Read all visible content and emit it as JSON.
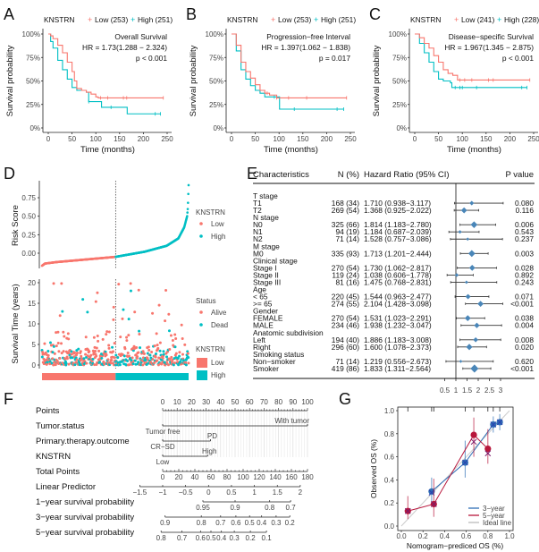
{
  "panel_labels": [
    "A",
    "B",
    "C",
    "D",
    "E",
    "F",
    "G"
  ],
  "chart_data": {
    "km": [
      {
        "type": "line",
        "legend_title": "KNSTRN",
        "low_label": "Low (253)",
        "high_label": "High (251)",
        "title": "Overall Survival",
        "hr": "HR = 1.73(1.288 − 2.324)",
        "p": "p < 0.001",
        "ylabel": "Survival probability",
        "xlabel": "Time (months)",
        "yticks": [
          "0%",
          "25%",
          "50%",
          "75%",
          "100%"
        ],
        "xticks": [
          "0",
          "50",
          "100",
          "150",
          "200",
          "250"
        ],
        "xlim": [
          0,
          250
        ],
        "ylim": [
          0,
          1
        ],
        "low": [
          [
            0,
            1
          ],
          [
            5,
            0.98
          ],
          [
            10,
            0.95
          ],
          [
            20,
            0.88
          ],
          [
            30,
            0.8
          ],
          [
            40,
            0.7
          ],
          [
            50,
            0.6
          ],
          [
            55,
            0.5
          ],
          [
            60,
            0.42
          ],
          [
            70,
            0.4
          ],
          [
            80,
            0.38
          ],
          [
            90,
            0.36
          ],
          [
            100,
            0.33
          ],
          [
            105,
            0.32
          ],
          [
            242,
            0.32
          ]
        ],
        "high": [
          [
            0,
            1
          ],
          [
            5,
            0.92
          ],
          [
            10,
            0.85
          ],
          [
            20,
            0.72
          ],
          [
            30,
            0.62
          ],
          [
            40,
            0.52
          ],
          [
            50,
            0.43
          ],
          [
            60,
            0.4
          ],
          [
            80,
            0.38
          ],
          [
            85,
            0.28
          ],
          [
            110,
            0.28
          ],
          [
            112,
            0.22
          ],
          [
            165,
            0.22
          ],
          [
            166,
            0.15
          ],
          [
            236,
            0.15
          ]
        ],
        "censor_low": [
          110,
          125,
          158,
          165,
          242
        ],
        "censor_high": [
          85,
          132,
          225,
          236
        ]
      },
      {
        "type": "line",
        "legend_title": "KNSTRN",
        "low_label": "Low (253)",
        "high_label": "High (251)",
        "title": "Progression−free Interval",
        "hr": "HR = 1.397(1.062 − 1.838)",
        "p": "p = 0.017",
        "ylabel": "Survival probability",
        "xlabel": "Time (months)",
        "yticks": [
          "0%",
          "25%",
          "50%",
          "75%",
          "100%"
        ],
        "xticks": [
          "0",
          "50",
          "100",
          "150",
          "200",
          "250"
        ],
        "xlim": [
          0,
          250
        ],
        "ylim": [
          0,
          1
        ],
        "low": [
          [
            0,
            1
          ],
          [
            10,
            0.88
          ],
          [
            20,
            0.7
          ],
          [
            30,
            0.6
          ],
          [
            40,
            0.53
          ],
          [
            50,
            0.46
          ],
          [
            60,
            0.4
          ],
          [
            70,
            0.37
          ],
          [
            80,
            0.35
          ],
          [
            95,
            0.32
          ],
          [
            242,
            0.32
          ]
        ],
        "high": [
          [
            0,
            1
          ],
          [
            10,
            0.82
          ],
          [
            20,
            0.62
          ],
          [
            30,
            0.52
          ],
          [
            40,
            0.45
          ],
          [
            50,
            0.4
          ],
          [
            60,
            0.37
          ],
          [
            70,
            0.33
          ],
          [
            100,
            0.33
          ],
          [
            101,
            0.2
          ],
          [
            236,
            0.2
          ]
        ],
        "censor_low": [
          75,
          95,
          120,
          158,
          242
        ],
        "censor_high": [
          90,
          132,
          222,
          236
        ]
      },
      {
        "type": "line",
        "legend_title": "KNSTRN",
        "low_label": "Low (241)",
        "high_label": "High (228)",
        "title": "Disease−specific Survival",
        "hr": "HR = 1.967(1.345 − 2.875)",
        "p": "p < 0.001",
        "ylabel": "Survival probability",
        "xlabel": "Time (months)",
        "yticks": [
          "0%",
          "25%",
          "50%",
          "75%",
          "100%"
        ],
        "xticks": [
          "0",
          "50",
          "100",
          "150",
          "200",
          "250"
        ],
        "xlim": [
          0,
          250
        ],
        "ylim": [
          0,
          1
        ],
        "low": [
          [
            0,
            1
          ],
          [
            10,
            0.96
          ],
          [
            20,
            0.9
          ],
          [
            30,
            0.85
          ],
          [
            40,
            0.77
          ],
          [
            50,
            0.7
          ],
          [
            60,
            0.62
          ],
          [
            70,
            0.58
          ],
          [
            80,
            0.56
          ],
          [
            90,
            0.51
          ],
          [
            242,
            0.51
          ]
        ],
        "high": [
          [
            0,
            1
          ],
          [
            10,
            0.9
          ],
          [
            20,
            0.8
          ],
          [
            30,
            0.7
          ],
          [
            40,
            0.6
          ],
          [
            50,
            0.52
          ],
          [
            60,
            0.5
          ],
          [
            75,
            0.48
          ],
          [
            78,
            0.43
          ],
          [
            236,
            0.43
          ]
        ],
        "censor_low": [
          95,
          105,
          120,
          155,
          165,
          242
        ],
        "censor_high": [
          85,
          95,
          100,
          130,
          225,
          236
        ]
      }
    ],
    "risk": {
      "type": "scatter",
      "n_low": 253,
      "n_high": 251,
      "ylabel_top": "Risk Score",
      "yticks_top": [
        "0.00",
        "0.25",
        "0.50",
        "0.75"
      ],
      "ylim_top": [
        -0.18,
        0.95
      ],
      "risk_score_quantiles": [
        [
          0,
          -0.17
        ],
        [
          0.02,
          -0.14
        ],
        [
          0.1,
          -0.12
        ],
        [
          0.5,
          -0.05
        ],
        [
          0.7,
          0.02
        ],
        [
          0.85,
          0.1
        ],
        [
          0.93,
          0.2
        ],
        [
          0.97,
          0.35
        ],
        [
          0.99,
          0.5
        ],
        [
          0.995,
          0.62
        ],
        [
          1,
          0.92
        ]
      ],
      "ylabel_bottom": "Survival Time (years)",
      "yticks_bottom": [
        "0",
        "5",
        "10",
        "15",
        "20"
      ],
      "ylim_bottom": [
        0,
        20
      ],
      "legend_group_title": "KNSTRN",
      "legend_status_title": "Status",
      "low": "Low",
      "high": "High",
      "alive": "Alive",
      "dead": "Dead"
    },
    "forest": {
      "type": "table",
      "headers": {
        "char": "Characteristics",
        "n": "N (%)",
        "hr": "Hazard Ratio (95% CI)",
        "p": "P value"
      },
      "xticks": [
        "0.5",
        "1",
        "1.5",
        "2",
        "2.5",
        "3"
      ],
      "rows": [
        {
          "label": "T stage"
        },
        {
          "label": "T1",
          "n": "168 (34)",
          "hr_text": "1.710 (0.938−3.117)",
          "hr": 1.71,
          "lo": 0.938,
          "hi": 3.117,
          "p": "0.080"
        },
        {
          "label": "T2",
          "n": "269 (54)",
          "hr_text": "1.368 (0.925−2.022)",
          "hr": 1.368,
          "lo": 0.925,
          "hi": 2.022,
          "p": "0.116"
        },
        {
          "label": "N stage"
        },
        {
          "label": "N0",
          "n": "325 (66)",
          "hr_text": "1.814 (1.183−2.780)",
          "hr": 1.814,
          "lo": 1.183,
          "hi": 2.78,
          "p": "0.006"
        },
        {
          "label": "N1",
          "n": "94 (19)",
          "hr_text": "1.184 (0.687−2.039)",
          "hr": 1.184,
          "lo": 0.687,
          "hi": 2.039,
          "p": "0.543"
        },
        {
          "label": "N2",
          "n": "71 (14)",
          "hr_text": "1.528 (0.757−3.086)",
          "hr": 1.528,
          "lo": 0.757,
          "hi": 3.086,
          "p": "0.237"
        },
        {
          "label": "M stage"
        },
        {
          "label": "M0",
          "n": "335 (93)",
          "hr_text": "1.713 (1.201−2.444)",
          "hr": 1.713,
          "lo": 1.201,
          "hi": 2.444,
          "p": "0.003"
        },
        {
          "label": "Clinical stage"
        },
        {
          "label": "Stage I",
          "n": "270 (54)",
          "hr_text": "1.730 (1.062−2.817)",
          "hr": 1.73,
          "lo": 1.062,
          "hi": 2.817,
          "p": "0.028"
        },
        {
          "label": "Stage II",
          "n": "119 (24)",
          "hr_text": "1.038 (0.606−1.778)",
          "hr": 1.038,
          "lo": 0.606,
          "hi": 1.778,
          "p": "0.892"
        },
        {
          "label": "Stage III",
          "n": "81 (16)",
          "hr_text": "1.475 (0.768−2.831)",
          "hr": 1.475,
          "lo": 0.768,
          "hi": 2.831,
          "p": "0.243"
        },
        {
          "label": "Age"
        },
        {
          "label": "< 65",
          "n": "220 (45)",
          "hr_text": "1.544 (0.963−2.477)",
          "hr": 1.544,
          "lo": 0.963,
          "hi": 2.477,
          "p": "0.071"
        },
        {
          "label": ">= 65",
          "n": "274 (55)",
          "hr_text": "2.104 (1.428−3.098)",
          "hr": 2.104,
          "lo": 1.428,
          "hi": 3.098,
          "p": "<0.001"
        },
        {
          "label": "Gender"
        },
        {
          "label": "FEMALE",
          "n": "270 (54)",
          "hr_text": "1.531 (1.023−2.291)",
          "hr": 1.531,
          "lo": 1.023,
          "hi": 2.291,
          "p": "0.038"
        },
        {
          "label": "MALE",
          "n": "234 (46)",
          "hr_text": "1.938 (1.232−3.047)",
          "hr": 1.938,
          "lo": 1.232,
          "hi": 3.047,
          "p": "0.004"
        },
        {
          "label": "Anatomic subdivision"
        },
        {
          "label": "Left",
          "n": "194 (40)",
          "hr_text": "1.886 (1.183−3.008)",
          "hr": 1.886,
          "lo": 1.183,
          "hi": 3.008,
          "p": "0.008"
        },
        {
          "label": "Right",
          "n": "296 (60)",
          "hr_text": "1.600 (1.078−2.373)",
          "hr": 1.6,
          "lo": 1.078,
          "hi": 2.373,
          "p": "0.020"
        },
        {
          "label": "Smoking status"
        },
        {
          "label": "Non−smoker",
          "n": "71 (14)",
          "hr_text": "1.219 (0.556−2.673)",
          "hr": 1.219,
          "lo": 0.556,
          "hi": 2.673,
          "p": "0.620"
        },
        {
          "label": "Smoker",
          "n": "419 (86)",
          "hr_text": "1.833 (1.311−2.564)",
          "hr": 1.833,
          "lo": 1.311,
          "hi": 2.564,
          "p": "<0.001"
        }
      ]
    },
    "nomogram": {
      "type": "nomogram",
      "points": {
        "label": "Points",
        "ticks": [
          "0",
          "10",
          "20",
          "30",
          "40",
          "50",
          "60",
          "70",
          "80",
          "90",
          "100"
        ]
      },
      "variables": [
        {
          "label": "Tumor.status",
          "levels": [
            {
              "name": "Tumor free",
              "points": 0
            },
            {
              "name": "With tumor",
              "points": 100
            }
          ]
        },
        {
          "label": "Primary.therapy.outcome",
          "levels": [
            {
              "name": "CR−SD",
              "points": 0
            },
            {
              "name": "PD",
              "points": 33
            }
          ]
        },
        {
          "label": "KNSTRN",
          "levels": [
            {
              "name": "Low",
              "points": 0
            },
            {
              "name": "High",
              "points": 31
            }
          ]
        }
      ],
      "total_points": {
        "label": "Total Points",
        "ticks": [
          "0",
          "20",
          "40",
          "60",
          "80",
          "100",
          "120",
          "140",
          "160",
          "180"
        ]
      },
      "scales": [
        {
          "label": "Linear Predictor",
          "ticks": [
            {
              "t": "−1.5",
              "tp": -28.5
            },
            {
              "t": "−1",
              "tp": 0
            },
            {
              "t": "−0.5",
              "tp": 28.5
            },
            {
              "t": "0",
              "tp": 57
            },
            {
              "t": "0.5",
              "tp": 85.5
            },
            {
              "t": "1",
              "tp": 114
            },
            {
              "t": "1.5",
              "tp": 142.5
            },
            {
              "t": "2",
              "tp": 171
            }
          ]
        },
        {
          "label": "1−year survival probability",
          "ticks": [
            {
              "t": "0.95",
              "tp": 50
            },
            {
              "t": "0.9",
              "tp": 90
            },
            {
              "t": "0.8",
              "tp": 133
            },
            {
              "t": "0.7",
              "tp": 159
            }
          ]
        },
        {
          "label": "3−year survival probability",
          "ticks": [
            {
              "t": "0.9",
              "tp": 3
            },
            {
              "t": "0.8",
              "tp": 48
            },
            {
              "t": "0.7",
              "tp": 72
            },
            {
              "t": "0.6",
              "tp": 91
            },
            {
              "t": "0.5",
              "tp": 108
            },
            {
              "t": "0.4",
              "tp": 123
            },
            {
              "t": "0.3",
              "tp": 141
            },
            {
              "t": "0.2",
              "tp": 158
            }
          ]
        },
        {
          "label": "5−year survival probability",
          "ticks": [
            {
              "t": "0.8",
              "tp": -2
            },
            {
              "t": "0.7",
              "tp": 24
            },
            {
              "t": "0.6",
              "tp": 47
            },
            {
              "t": "0.5",
              "tp": 60
            },
            {
              "t": "0.4",
              "tp": 73
            },
            {
              "t": "0.3",
              "tp": 89
            },
            {
              "t": "0.2",
              "tp": 109
            },
            {
              "t": "0.1",
              "tp": 129
            }
          ]
        }
      ]
    },
    "calibration": {
      "type": "scatter",
      "xlabel": "Nomogram−prediced OS (%)",
      "ylabel": "Observed OS (%)",
      "xlim": [
        0,
        1
      ],
      "ylim": [
        0,
        1
      ],
      "ticks": [
        "0.0",
        "0.2",
        "0.4",
        "0.6",
        "0.8",
        "1.0"
      ],
      "series": [
        {
          "name": "3−year",
          "color": "#2F6EB5",
          "x": [
            0.28,
            0.59,
            0.85,
            0.91
          ],
          "y": [
            0.3,
            0.55,
            0.88,
            0.9
          ],
          "lo": [
            0.18,
            0.42,
            0.81,
            0.83
          ],
          "hi": [
            0.42,
            0.74,
            0.95,
            0.97
          ],
          "corrected_y": [
            0.29,
            0.55,
            0.88,
            0.9
          ]
        },
        {
          "name": "5−year",
          "color": "#B8173C",
          "x": [
            0.06,
            0.3,
            0.67,
            0.8
          ],
          "y": [
            0.13,
            0.19,
            0.79,
            0.67
          ],
          "lo": [
            0.06,
            0.08,
            0.6,
            0.54
          ],
          "hi": [
            0.26,
            0.41,
            0.94,
            0.84
          ],
          "corrected_y": [
            0.13,
            0.19,
            0.73,
            0.63
          ]
        },
        {
          "name": "Ideal line",
          "color": "#BBBBBB"
        }
      ]
    }
  },
  "colors": {
    "low": "#F8766D",
    "high": "#00BFC4",
    "diamond": "#4A86B8"
  }
}
